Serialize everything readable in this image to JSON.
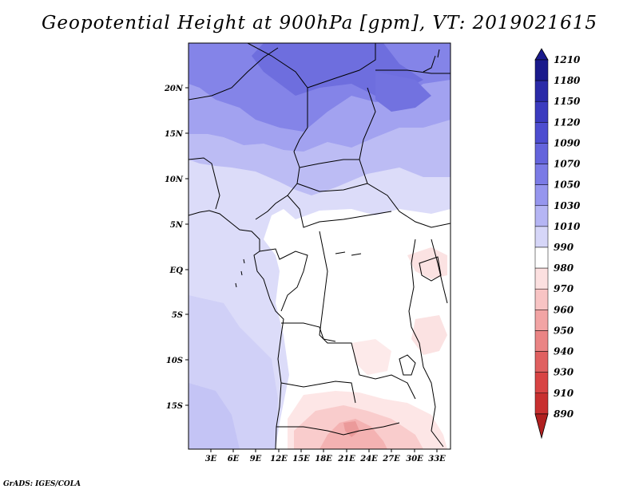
{
  "title": "Geopotential Height at 900hPa [gpm], VT: 2019021615",
  "footer": "GrADS: IGES/COLA",
  "map": {
    "lat_labels": [
      "20N",
      "15N",
      "10N",
      "5N",
      "EQ",
      "5S",
      "10S",
      "15S"
    ],
    "lon_labels": [
      "3E",
      "6E",
      "9E",
      "12E",
      "15E",
      "18E",
      "21E",
      "24E",
      "27E",
      "30E",
      "33E"
    ]
  },
  "colorbar": {
    "labels": [
      "1210",
      "1180",
      "1150",
      "1120",
      "1090",
      "1070",
      "1050",
      "1030",
      "1010",
      "990",
      "980",
      "970",
      "960",
      "950",
      "940",
      "930",
      "910",
      "890"
    ],
    "colors": [
      "#1a1a8c",
      "#2a2aa8",
      "#3b3bbf",
      "#4d4dd0",
      "#6464dc",
      "#7b7be6",
      "#9696ee",
      "#b5b5f4",
      "#d6d6f8",
      "#ffffff",
      "#fce0e0",
      "#f8c4c4",
      "#f2a4a4",
      "#ea8484",
      "#e06060",
      "#d84444",
      "#c83030",
      "#b02020"
    ]
  }
}
